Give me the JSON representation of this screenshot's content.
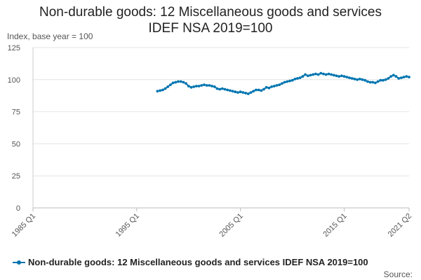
{
  "title_line1": "Non-durable goods: 12 Miscellaneous goods and services",
  "title_line2": "IDEF NSA 2019=100",
  "y_axis_label": "Index, base year = 100",
  "legend_label": "Non-durable goods: 12 Miscellaneous goods and services IDEF NSA 2019=100",
  "source_label": "Source:",
  "series_color": "#0075b0",
  "chart_data": {
    "type": "line",
    "title": "Non-durable goods: 12 Miscellaneous goods and services IDEF NSA 2019=100",
    "ylabel": "Index, base year = 100",
    "ylim": [
      0,
      125
    ],
    "y_ticks": [
      0,
      25,
      50,
      75,
      100,
      125
    ],
    "x_range": [
      "1985 Q1",
      "2021 Q2"
    ],
    "x_ticks": [
      "1985 Q1",
      "1995 Q1",
      "2005 Q1",
      "2015 Q1",
      "2021 Q2"
    ],
    "grid": "horizontal",
    "legend": "bottom",
    "series": [
      {
        "name": "Non-durable goods: 12 Miscellaneous goods and services IDEF NSA 2019=100",
        "x": [
          "1997 Q1",
          "1997 Q2",
          "1997 Q3",
          "1997 Q4",
          "1998 Q1",
          "1998 Q2",
          "1998 Q3",
          "1998 Q4",
          "1999 Q1",
          "1999 Q2",
          "1999 Q3",
          "1999 Q4",
          "2000 Q1",
          "2000 Q2",
          "2000 Q3",
          "2000 Q4",
          "2001 Q1",
          "2001 Q2",
          "2001 Q3",
          "2001 Q4",
          "2002 Q1",
          "2002 Q2",
          "2002 Q3",
          "2002 Q4",
          "2003 Q1",
          "2003 Q2",
          "2003 Q3",
          "2003 Q4",
          "2004 Q1",
          "2004 Q2",
          "2004 Q3",
          "2004 Q4",
          "2005 Q1",
          "2005 Q2",
          "2005 Q3",
          "2005 Q4",
          "2006 Q1",
          "2006 Q2",
          "2006 Q3",
          "2006 Q4",
          "2007 Q1",
          "2007 Q2",
          "2007 Q3",
          "2007 Q4",
          "2008 Q1",
          "2008 Q2",
          "2008 Q3",
          "2008 Q4",
          "2009 Q1",
          "2009 Q2",
          "2009 Q3",
          "2009 Q4",
          "2010 Q1",
          "2010 Q2",
          "2010 Q3",
          "2010 Q4",
          "2011 Q1",
          "2011 Q2",
          "2011 Q3",
          "2011 Q4",
          "2012 Q1",
          "2012 Q2",
          "2012 Q3",
          "2012 Q4",
          "2013 Q1",
          "2013 Q2",
          "2013 Q3",
          "2013 Q4",
          "2014 Q1",
          "2014 Q2",
          "2014 Q3",
          "2014 Q4",
          "2015 Q1",
          "2015 Q2",
          "2015 Q3",
          "2015 Q4",
          "2016 Q1",
          "2016 Q2",
          "2016 Q3",
          "2016 Q4",
          "2017 Q1",
          "2017 Q2",
          "2017 Q3",
          "2017 Q4",
          "2018 Q1",
          "2018 Q2",
          "2018 Q3",
          "2018 Q4",
          "2019 Q1",
          "2019 Q2",
          "2019 Q3",
          "2019 Q4",
          "2020 Q1",
          "2020 Q2",
          "2020 Q3",
          "2020 Q4",
          "2021 Q1",
          "2021 Q2"
        ],
        "values": [
          91,
          91.5,
          92,
          93,
          94.5,
          96,
          97.5,
          98,
          98.5,
          98.5,
          98,
          97,
          95,
          94,
          94.5,
          95,
          95,
          95.5,
          96,
          95.5,
          95.5,
          95,
          94.5,
          93,
          92.5,
          93,
          92.5,
          92,
          91.5,
          91,
          90.5,
          90,
          90.5,
          90,
          89.5,
          89,
          90,
          91,
          92,
          92,
          91.5,
          92.5,
          94,
          93.5,
          94.5,
          95,
          95.5,
          96,
          97,
          98,
          98.5,
          99,
          99.5,
          100.5,
          101,
          101.5,
          102.5,
          104,
          103,
          103.5,
          104,
          104.5,
          104,
          105,
          104.5,
          104,
          104.5,
          104,
          103.5,
          103,
          102.5,
          103,
          102.5,
          102,
          101.5,
          101,
          100.5,
          100,
          100.5,
          100,
          99.5,
          98.5,
          98,
          98,
          97.5,
          98.5,
          99.5,
          99.5,
          100,
          101,
          102.5,
          103.5,
          102.5,
          101,
          101.5,
          102,
          102.5,
          102
        ]
      }
    ]
  }
}
